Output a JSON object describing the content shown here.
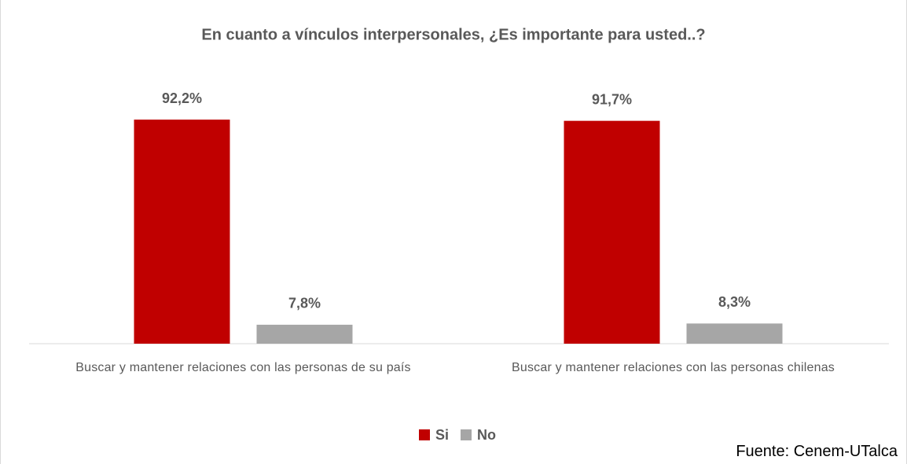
{
  "chart_data": {
    "type": "bar",
    "title": "En cuanto a vínculos interpersonales, ¿Es importante para usted..?",
    "categories": [
      "Buscar y mantener relaciones con las personas de su país",
      "Buscar y mantener relaciones con las personas chilenas"
    ],
    "series": [
      {
        "name": "Si",
        "color": "#c00000",
        "values": [
          92.2,
          91.7
        ],
        "value_labels": [
          "92,2%",
          "91,7%"
        ]
      },
      {
        "name": "No",
        "color": "#a6a6a6",
        "values": [
          7.8,
          8.3
        ],
        "value_labels": [
          "7,8%",
          "8,3%"
        ]
      }
    ],
    "ylim": [
      0,
      100
    ],
    "legend": "bottom"
  },
  "source": "Fuente: Cenem-UTalca"
}
